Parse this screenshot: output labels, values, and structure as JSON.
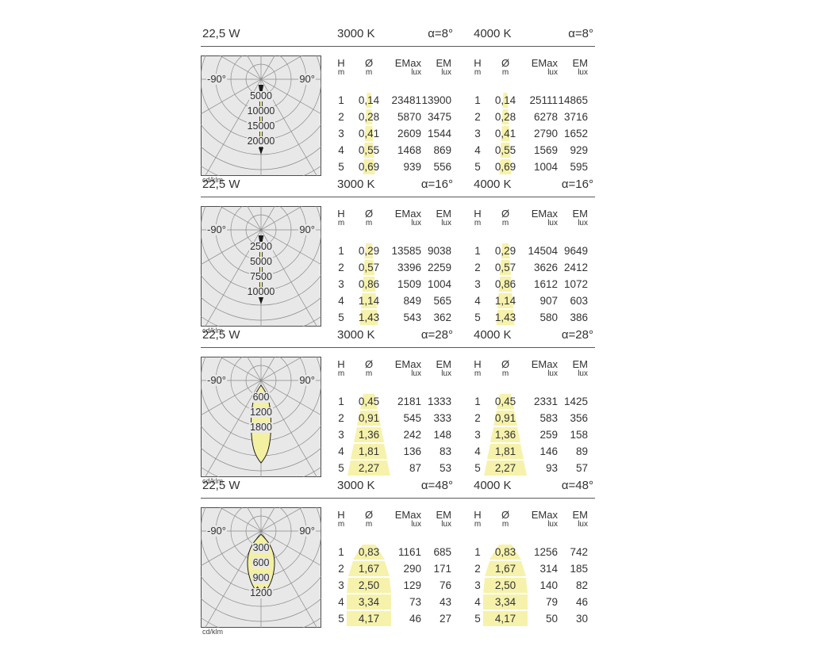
{
  "colors": {
    "highlight": "#f6f2ab",
    "lobe_fill": "#f4f0a2",
    "lobe_stroke": "#1c1c1c",
    "diagram_bg": "#e8e8e8",
    "grid_line": "#8a8a8a",
    "border": "#4d4d4d",
    "text": "#333333"
  },
  "diagram_unit": "cd/klm",
  "angle_left": "-90°",
  "angle_right": "90°",
  "columns": [
    {
      "label": "H",
      "unit": "m"
    },
    {
      "label": "Ø",
      "unit": "m"
    },
    {
      "label": "EMax",
      "unit": "lux"
    },
    {
      "label": "EM",
      "unit": "lux"
    }
  ],
  "sections": [
    {
      "wattage": "22,5 W",
      "cct_left": "3000 K",
      "alpha_left": "α=8°",
      "cct_right": "4000 K",
      "alpha_right": "α=8°",
      "ring_labels": [
        "5000",
        "10000",
        "15000",
        "20000"
      ],
      "beam": {
        "shape": "needle",
        "length": 95
      },
      "cone_widths": [
        [
          5,
          7
        ],
        [
          7,
          9
        ],
        [
          9,
          11
        ],
        [
          11,
          13
        ],
        [
          13,
          15
        ]
      ],
      "table_3000k": [
        [
          "1",
          "0,14",
          "23481",
          "13900"
        ],
        [
          "2",
          "0,28",
          "5870",
          "3475"
        ],
        [
          "3",
          "0,41",
          "2609",
          "1544"
        ],
        [
          "4",
          "0,55",
          "1468",
          "869"
        ],
        [
          "5",
          "0,69",
          "939",
          "556"
        ]
      ],
      "table_4000k": [
        [
          "1",
          "0,14",
          "25111",
          "14865"
        ],
        [
          "2",
          "0,28",
          "6278",
          "3716"
        ],
        [
          "3",
          "0,41",
          "2790",
          "1652"
        ],
        [
          "4",
          "0,55",
          "1569",
          "929"
        ],
        [
          "5",
          "0,69",
          "1004",
          "595"
        ]
      ]
    },
    {
      "wattage": "22,5 W",
      "cct_left": "3000 K",
      "alpha_left": "α=16°",
      "cct_right": "4000 K",
      "alpha_right": "α=16°",
      "ring_labels": [
        "2500",
        "5000",
        "7500",
        "10000"
      ],
      "beam": {
        "shape": "needle",
        "length": 94
      },
      "cone_widths": [
        [
          8,
          11
        ],
        [
          11,
          14
        ],
        [
          14,
          17
        ],
        [
          17,
          20
        ],
        [
          20,
          23
        ]
      ],
      "table_3000k": [
        [
          "1",
          "0,29",
          "13585",
          "9038"
        ],
        [
          "2",
          "0,57",
          "3396",
          "2259"
        ],
        [
          "3",
          "0,86",
          "1509",
          "1004"
        ],
        [
          "4",
          "1,14",
          "849",
          "565"
        ],
        [
          "5",
          "1,43",
          "543",
          "362"
        ]
      ],
      "table_4000k": [
        [
          "1",
          "0,29",
          "14504",
          "9649"
        ],
        [
          "2",
          "0,57",
          "3626",
          "2412"
        ],
        [
          "3",
          "0,86",
          "1612",
          "1072"
        ],
        [
          "4",
          "1,14",
          "907",
          "603"
        ],
        [
          "5",
          "1,43",
          "580",
          "386"
        ]
      ]
    },
    {
      "wattage": "22,5 W",
      "cct_left": "3000 K",
      "alpha_left": "α=28°",
      "cct_right": "4000 K",
      "alpha_right": "α=28°",
      "ring_labels": [
        "600",
        "1200",
        "1800"
      ],
      "beam": {
        "shape": "drop",
        "length": 74
      },
      "cone_widths": [
        [
          14,
          22
        ],
        [
          22,
          30
        ],
        [
          30,
          38
        ],
        [
          38,
          46
        ],
        [
          46,
          54
        ]
      ],
      "table_3000k": [
        [
          "1",
          "0,45",
          "2181",
          "1333"
        ],
        [
          "2",
          "0,91",
          "545",
          "333"
        ],
        [
          "3",
          "1,36",
          "242",
          "148"
        ],
        [
          "4",
          "1,81",
          "136",
          "83"
        ],
        [
          "5",
          "2,27",
          "87",
          "53"
        ]
      ],
      "table_4000k": [
        [
          "1",
          "0,45",
          "2331",
          "1425"
        ],
        [
          "2",
          "0,91",
          "583",
          "356"
        ],
        [
          "3",
          "1,36",
          "259",
          "158"
        ],
        [
          "4",
          "1,81",
          "146",
          "89"
        ],
        [
          "5",
          "2,27",
          "93",
          "57"
        ]
      ]
    },
    {
      "wattage": "22,5 W",
      "cct_left": "3000 K",
      "alpha_left": "α=48°",
      "cct_right": "4000 K",
      "alpha_right": "α=48°",
      "ring_labels": [
        "300",
        "600",
        "900",
        "1200"
      ],
      "beam": {
        "shape": "bulb",
        "length": 80
      },
      "cone_widths": [
        [
          16,
          40
        ],
        [
          40,
          52
        ],
        [
          52,
          56
        ],
        [
          56,
          56
        ],
        [
          56,
          56
        ]
      ],
      "table_3000k": [
        [
          "1",
          "0,83",
          "1161",
          "685"
        ],
        [
          "2",
          "1,67",
          "290",
          "171"
        ],
        [
          "3",
          "2,50",
          "129",
          "76"
        ],
        [
          "4",
          "3,34",
          "73",
          "43"
        ],
        [
          "5",
          "4,17",
          "46",
          "27"
        ]
      ],
      "table_4000k": [
        [
          "1",
          "0,83",
          "1256",
          "742"
        ],
        [
          "2",
          "1,67",
          "314",
          "185"
        ],
        [
          "3",
          "2,50",
          "140",
          "82"
        ],
        [
          "4",
          "3,34",
          "79",
          "46"
        ],
        [
          "5",
          "4,17",
          "50",
          "30"
        ]
      ]
    }
  ]
}
